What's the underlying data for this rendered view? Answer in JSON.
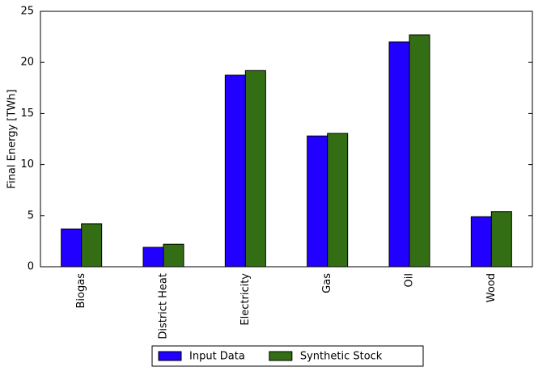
{
  "chart_data": {
    "type": "bar",
    "y_label": "Final Energy [TWh]",
    "categories": [
      "Biogas",
      "District Heat",
      "Electricity",
      "Gas",
      "Oil",
      "Wood"
    ],
    "series": [
      {
        "name": "Input Data",
        "color": "#2200ff",
        "values": [
          3.7,
          1.9,
          18.75,
          12.8,
          22.0,
          4.9
        ]
      },
      {
        "name": "Synthetic Stock",
        "color": "#336e14",
        "values": [
          4.2,
          2.2,
          19.2,
          13.05,
          22.7,
          5.4
        ]
      }
    ],
    "ylim": [
      0,
      25
    ],
    "yticks": [
      0,
      5,
      10,
      15,
      20,
      25
    ],
    "grid": false,
    "legend": "bottom"
  }
}
